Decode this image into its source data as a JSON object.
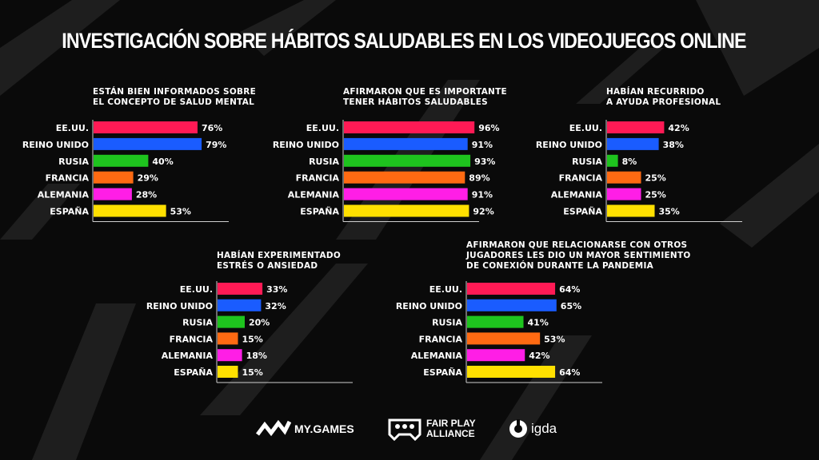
{
  "title": "INVESTIGACIÓN SOBRE HÁBITOS SALUDABLES EN LOS VIDEOJUEGOS ONLINE",
  "colors": {
    "background": "#0a0a0a",
    "series": [
      "#ff1a55",
      "#1a5cff",
      "#1ec41e",
      "#ff6a12",
      "#ff1ee6",
      "#ffe000"
    ]
  },
  "logos": {
    "mygames": "MY.GAMES",
    "fairplay_line1": "FAIR PLAY",
    "fairplay_line2": "ALLIANCE",
    "igda": "igda",
    "mygames_icon": "my-games-logo-icon",
    "fairplay_icon": "fair-play-alliance-controller-icon",
    "igda_icon": "igda-logo-icon"
  },
  "chart_data": [
    {
      "type": "bar",
      "orientation": "horizontal",
      "title": [
        "ESTÁN BIEN INFORMADOS SOBRE",
        "EL CONCEPTO DE SALUD MENTAL"
      ],
      "categories": [
        "EE.UU.",
        "REINO UNIDO",
        "RUSIA",
        "FRANCIA",
        "ALEMANIA",
        "ESPAÑA"
      ],
      "values": [
        76,
        79,
        40,
        29,
        28,
        53
      ],
      "labels": [
        "76%",
        "79%",
        "40%",
        "29%",
        "28%",
        "53%"
      ],
      "xlim": [
        0,
        100
      ]
    },
    {
      "type": "bar",
      "orientation": "horizontal",
      "title": [
        "AFIRMARON QUE ES IMPORTANTE",
        "TENER HÁBITOS SALUDABLES"
      ],
      "categories": [
        "EE.UU.",
        "REINO UNIDO",
        "RUSIA",
        "FRANCIA",
        "ALEMANIA",
        "ESPAÑA"
      ],
      "values": [
        96,
        91,
        93,
        89,
        91,
        92
      ],
      "labels": [
        "96%",
        "91%",
        "93%",
        "89%",
        "91%",
        "92%"
      ],
      "xlim": [
        0,
        100
      ]
    },
    {
      "type": "bar",
      "orientation": "horizontal",
      "title": [
        "HABÍAN RECURRIDO",
        "A AYUDA PROFESIONAL"
      ],
      "categories": [
        "EE.UU.",
        "REINO UNIDO",
        "RUSIA",
        "FRANCIA",
        "ALEMANIA",
        "ESPAÑA"
      ],
      "values": [
        42,
        38,
        8,
        25,
        25,
        35
      ],
      "labels": [
        "42%",
        "38%",
        "8%",
        "25%",
        "25%",
        "35%"
      ],
      "xlim": [
        0,
        100
      ]
    },
    {
      "type": "bar",
      "orientation": "horizontal",
      "title": [
        "HABÍAN EXPERIMENTADO",
        "ESTRÉS O ANSIEDAD"
      ],
      "categories": [
        "EE.UU.",
        "REINO UNIDO",
        "RUSIA",
        "FRANCIA",
        "ALEMANIA",
        "ESPAÑA"
      ],
      "values": [
        33,
        32,
        20,
        15,
        18,
        15
      ],
      "labels": [
        "33%",
        "32%",
        "20%",
        "15%",
        "18%",
        "15%"
      ],
      "xlim": [
        0,
        100
      ]
    },
    {
      "type": "bar",
      "orientation": "horizontal",
      "title": [
        "AFIRMARON QUE RELACIONARSE CON OTROS",
        "JUGADORES LES DIO UN MAYOR SENTIMIENTO",
        "DE CONEXIÓN DURANTE LA PANDEMIA"
      ],
      "categories": [
        "EE.UU.",
        "REINO UNIDO",
        "RUSIA",
        "FRANCIA",
        "ALEMANIA",
        "ESPAÑA"
      ],
      "values": [
        64,
        65,
        41,
        53,
        42,
        64
      ],
      "labels": [
        "64%",
        "65%",
        "41%",
        "53%",
        "42%",
        "64%"
      ],
      "xlim": [
        0,
        100
      ]
    }
  ]
}
